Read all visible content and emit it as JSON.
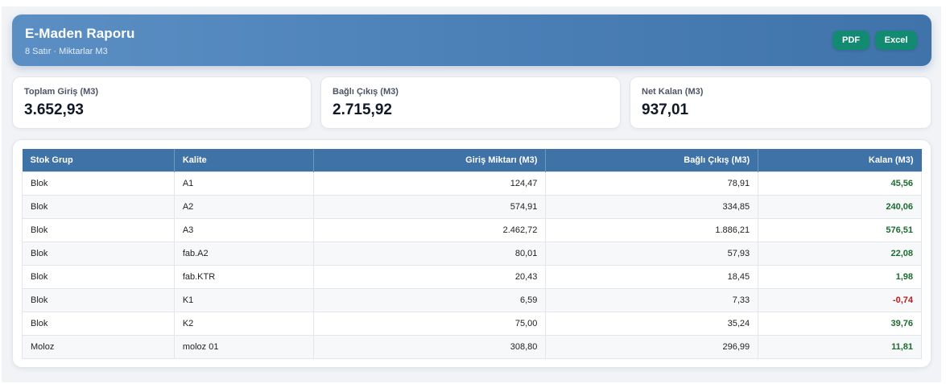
{
  "header": {
    "title": "E-Maden Raporu",
    "subtitle": "8 Satır · Miktarlar M3",
    "pdf_label": "PDF",
    "excel_label": "Excel"
  },
  "summary": [
    {
      "label": "Toplam Giriş (M3)",
      "value": "3.652,93"
    },
    {
      "label": "Bağlı Çıkış (M3)",
      "value": "2.715,92"
    },
    {
      "label": "Net Kalan (M3)",
      "value": "937,01"
    }
  ],
  "table": {
    "columns": [
      "Stok Grup",
      "Kalite",
      "Giriş Miktarı (M3)",
      "Bağlı Çıkış (M3)",
      "Kalan (M3)"
    ],
    "rows": [
      {
        "grup": "Blok",
        "kalite": "A1",
        "giris": "124,47",
        "cikis": "78,91",
        "kalan": "45,56"
      },
      {
        "grup": "Blok",
        "kalite": "A2",
        "giris": "574,91",
        "cikis": "334,85",
        "kalan": "240,06"
      },
      {
        "grup": "Blok",
        "kalite": "A3",
        "giris": "2.462,72",
        "cikis": "1.886,21",
        "kalan": "576,51"
      },
      {
        "grup": "Blok",
        "kalite": "fab.A2",
        "giris": "80,01",
        "cikis": "57,93",
        "kalan": "22,08"
      },
      {
        "grup": "Blok",
        "kalite": "fab.KTR",
        "giris": "20,43",
        "cikis": "18,45",
        "kalan": "1,98"
      },
      {
        "grup": "Blok",
        "kalite": "K1",
        "giris": "6,59",
        "cikis": "7,33",
        "kalan": "-0,74"
      },
      {
        "grup": "Blok",
        "kalite": "K2",
        "giris": "75,00",
        "cikis": "35,24",
        "kalan": "39,76"
      },
      {
        "grup": "Moloz",
        "kalite": "moloz 01",
        "giris": "308,80",
        "cikis": "296,99",
        "kalan": "11,81"
      }
    ]
  },
  "colors": {
    "header_gradient_start": "#5b8fc4",
    "header_gradient_end": "#3f73a9",
    "button": "#138a72",
    "table_header": "#3f72a6",
    "positive": "#1c6b2f",
    "negative": "#b91c1c"
  }
}
